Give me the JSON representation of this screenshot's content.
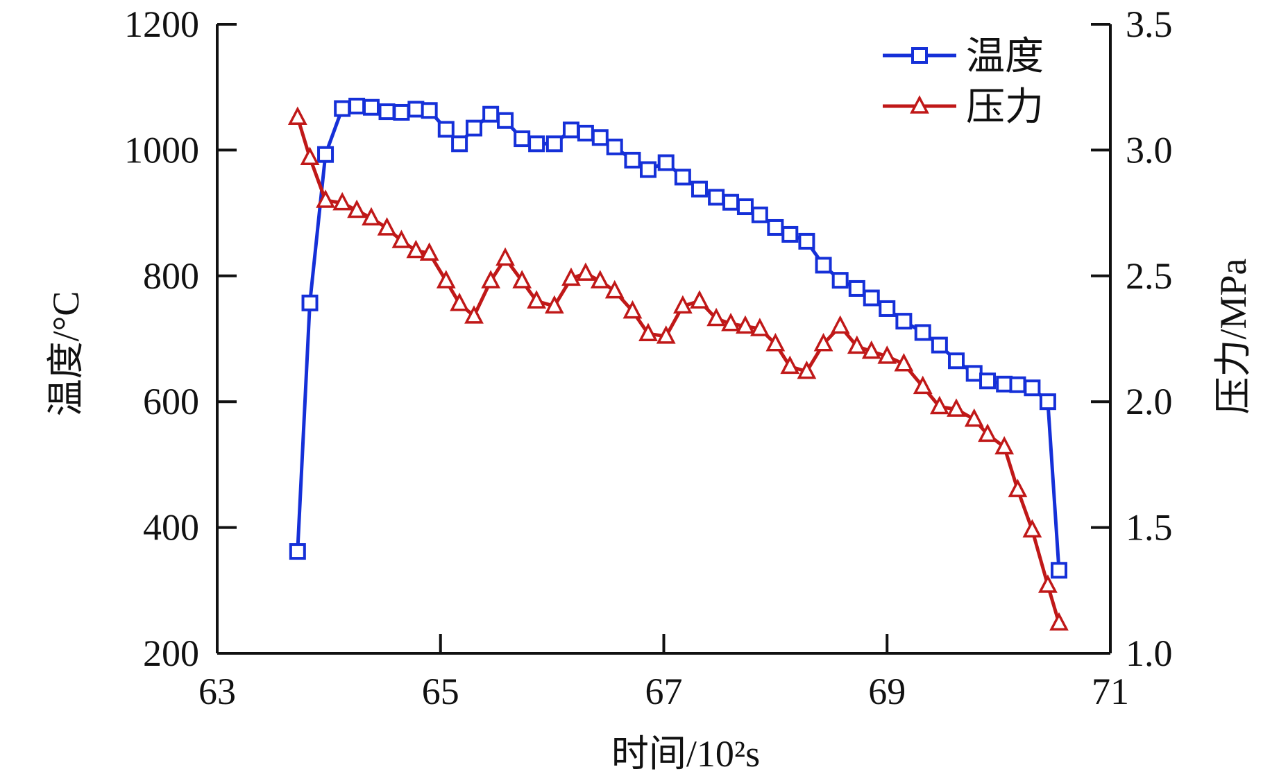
{
  "chart_data": {
    "type": "line",
    "xlabel": "时间/10²s",
    "ylabel_left": "温度/°C",
    "ylabel_right": "压力/MPa",
    "xlim": [
      63,
      71
    ],
    "ylim_left": [
      200,
      1200
    ],
    "ylim_right": [
      1.0,
      3.5
    ],
    "x_ticks": [
      "63",
      "65",
      "67",
      "69",
      "71"
    ],
    "y_left_ticks": [
      "200",
      "400",
      "600",
      "800",
      "1000",
      "1200"
    ],
    "y_right_ticks": [
      "1.0",
      "1.5",
      "2.0",
      "2.5",
      "3.0",
      "3.5"
    ],
    "grid": false,
    "legend_position": "top-right",
    "series": [
      {
        "name": "温度",
        "axis": "left",
        "color": "#1530d8",
        "marker": "square",
        "x": [
          63.72,
          63.83,
          63.97,
          64.12,
          64.25,
          64.38,
          64.52,
          64.65,
          64.78,
          64.9,
          65.05,
          65.17,
          65.3,
          65.45,
          65.58,
          65.73,
          65.86,
          66.02,
          66.17,
          66.3,
          66.43,
          66.56,
          66.72,
          66.86,
          67.02,
          67.17,
          67.32,
          67.47,
          67.6,
          67.73,
          67.86,
          68.0,
          68.13,
          68.28,
          68.43,
          68.58,
          68.73,
          68.86,
          69.0,
          69.15,
          69.32,
          69.47,
          69.62,
          69.78,
          69.9,
          70.05,
          70.17,
          70.3,
          70.44,
          70.54
        ],
        "y": [
          362,
          757,
          993,
          1066,
          1070,
          1068,
          1061,
          1060,
          1065,
          1063,
          1033,
          1010,
          1035,
          1057,
          1047,
          1018,
          1010,
          1010,
          1032,
          1027,
          1020,
          1005,
          984,
          969,
          980,
          957,
          938,
          925,
          917,
          910,
          897,
          877,
          866,
          855,
          817,
          793,
          780,
          765,
          748,
          728,
          710,
          690,
          665,
          645,
          633,
          628,
          627,
          622,
          600,
          332
        ]
      },
      {
        "name": "压力",
        "axis": "right",
        "color": "#c01818",
        "marker": "triangle",
        "x": [
          63.72,
          63.83,
          63.97,
          64.12,
          64.25,
          64.38,
          64.52,
          64.65,
          64.78,
          64.9,
          65.05,
          65.17,
          65.3,
          65.45,
          65.58,
          65.73,
          65.86,
          66.02,
          66.17,
          66.3,
          66.43,
          66.56,
          66.72,
          66.86,
          67.02,
          67.17,
          67.32,
          67.47,
          67.6,
          67.73,
          67.86,
          68.0,
          68.13,
          68.28,
          68.43,
          68.58,
          68.73,
          68.86,
          69.0,
          69.15,
          69.32,
          69.47,
          69.62,
          69.78,
          69.9,
          70.05,
          70.17,
          70.3,
          70.44,
          70.54
        ],
        "y": [
          3.13,
          2.97,
          2.8,
          2.79,
          2.76,
          2.73,
          2.69,
          2.64,
          2.6,
          2.59,
          2.48,
          2.39,
          2.34,
          2.48,
          2.57,
          2.48,
          2.4,
          2.38,
          2.49,
          2.51,
          2.48,
          2.44,
          2.36,
          2.27,
          2.26,
          2.38,
          2.4,
          2.33,
          2.31,
          2.3,
          2.29,
          2.23,
          2.14,
          2.12,
          2.23,
          2.3,
          2.22,
          2.2,
          2.18,
          2.15,
          2.06,
          1.98,
          1.97,
          1.93,
          1.87,
          1.82,
          1.65,
          1.49,
          1.27,
          1.12
        ]
      }
    ]
  }
}
